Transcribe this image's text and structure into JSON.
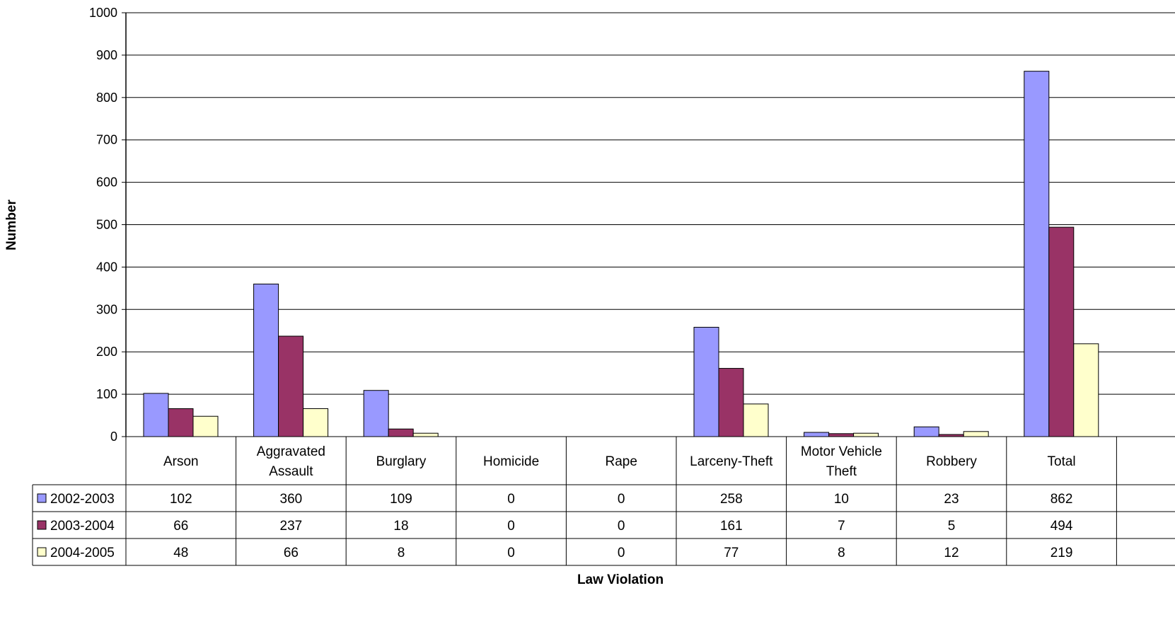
{
  "chart_data": {
    "type": "bar",
    "title": "",
    "xlabel": "Law Violation",
    "ylabel": "Number",
    "ylim": [
      0,
      1000
    ],
    "yticks": [
      0,
      100,
      200,
      300,
      400,
      500,
      600,
      700,
      800,
      900,
      1000
    ],
    "grid": true,
    "legend": "data-table-left",
    "categories": [
      [
        "Arson"
      ],
      [
        "Aggravated",
        "Assault"
      ],
      [
        "Burglary"
      ],
      [
        "Homicide"
      ],
      [
        "Rape"
      ],
      [
        "Larceny-Theft"
      ],
      [
        "Motor Vehicle",
        "Theft"
      ],
      [
        "Robbery"
      ],
      [
        "Total"
      ]
    ],
    "series": [
      {
        "name": "2002-2003",
        "color": "#9999ff",
        "values": [
          102,
          360,
          109,
          0,
          0,
          258,
          10,
          23,
          862
        ]
      },
      {
        "name": "2003-2004",
        "color": "#993366",
        "values": [
          66,
          237,
          18,
          0,
          0,
          161,
          7,
          5,
          494
        ]
      },
      {
        "name": "2004-2005",
        "color": "#ffffcc",
        "values": [
          48,
          66,
          8,
          0,
          0,
          77,
          8,
          12,
          219
        ]
      }
    ]
  }
}
